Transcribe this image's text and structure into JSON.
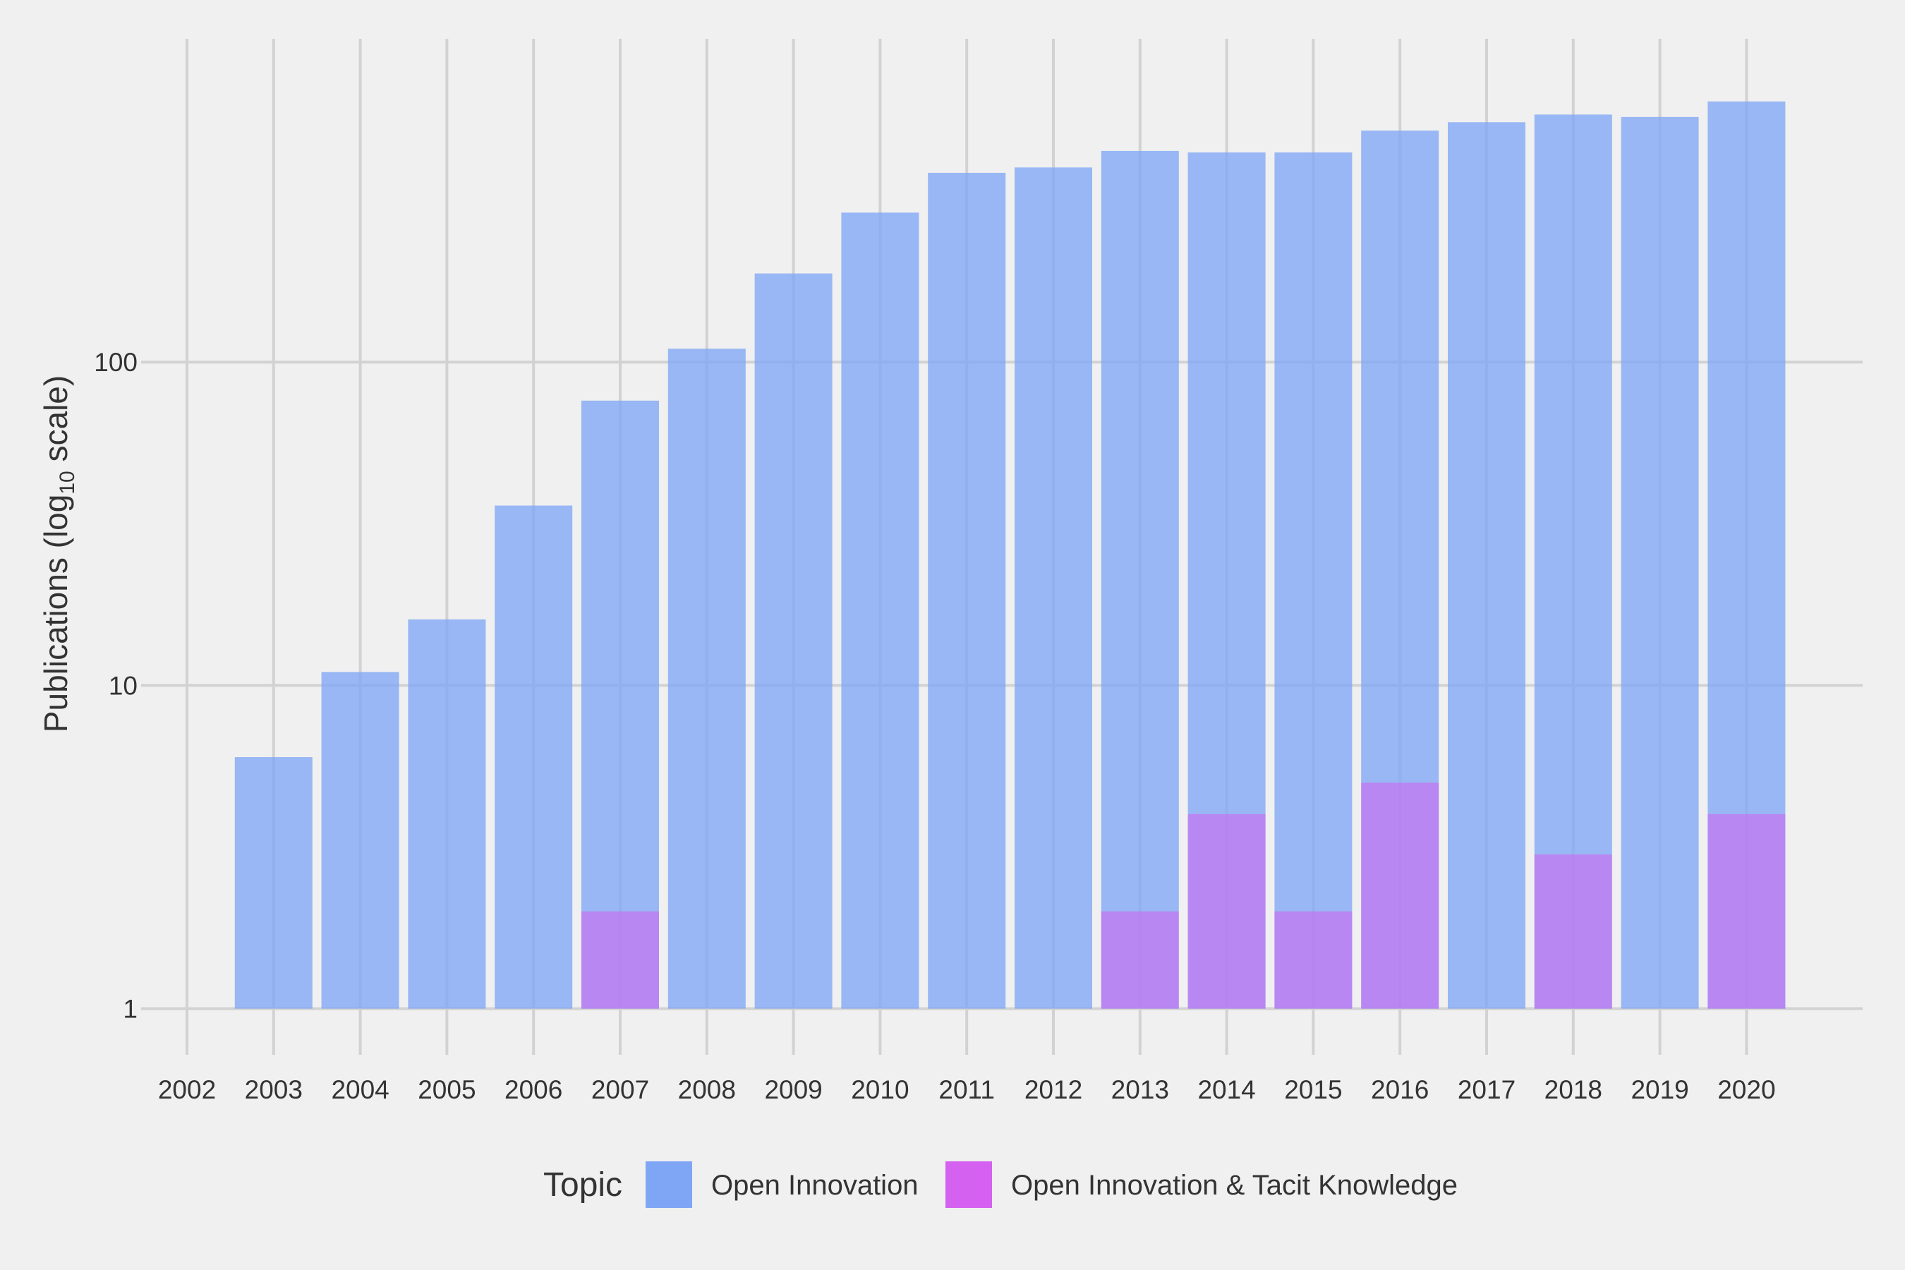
{
  "chart_data": {
    "type": "bar",
    "ylabel": "Publications (log",
    "ylabel_sub": "10",
    "ylabel_suffix": " scale)",
    "yscale": "log10",
    "ylim": [
      0.72,
      1000
    ],
    "yticks": [
      1,
      10,
      100
    ],
    "grid": true,
    "x_ticks": [
      2002,
      2003,
      2004,
      2005,
      2006,
      2007,
      2008,
      2009,
      2010,
      2011,
      2012,
      2013,
      2014,
      2015,
      2016,
      2017,
      2018,
      2019,
      2020
    ],
    "categories": [
      2003,
      2004,
      2005,
      2006,
      2007,
      2008,
      2009,
      2010,
      2011,
      2012,
      2013,
      2014,
      2015,
      2016,
      2017,
      2018,
      2019,
      2020
    ],
    "series": [
      {
        "name": "Open Innovation",
        "color": "#7fa6f5",
        "values": [
          6,
          11,
          16,
          36,
          76,
          110,
          188,
          290,
          385,
          400,
          450,
          445,
          445,
          520,
          552,
          583,
          573,
          640
        ]
      },
      {
        "name": "Open Innovation & Tacit Knowledge",
        "color": "#d561f0",
        "values": [
          null,
          null,
          null,
          null,
          2,
          null,
          null,
          null,
          null,
          null,
          2,
          4,
          2,
          5,
          null,
          3,
          null,
          4
        ]
      }
    ],
    "legend": {
      "title": "Topic",
      "position": "bottom"
    }
  }
}
